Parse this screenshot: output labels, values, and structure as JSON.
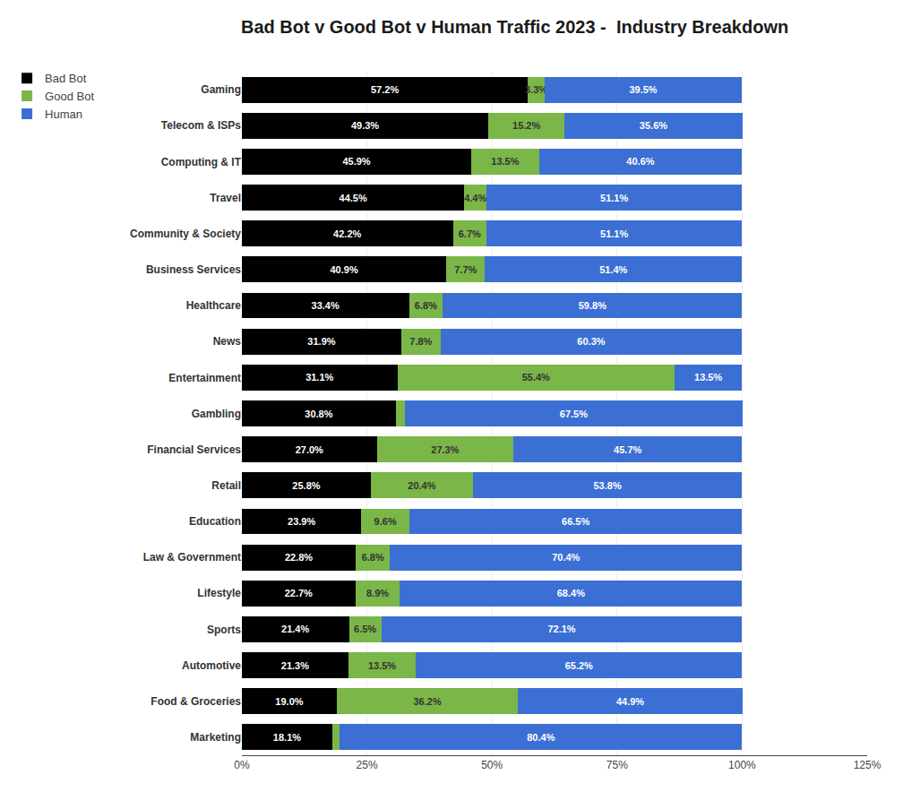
{
  "chart_data": {
    "type": "bar",
    "orientation": "horizontal",
    "stacked": true,
    "title": "Bad Bot v Good Bot v Human Traffic 2023 -  Industry Breakdown",
    "categories": [
      "Gaming",
      "Telecom & ISPs",
      "Computing & IT",
      "Travel",
      "Community & Society",
      "Business Services",
      "Healthcare",
      "News",
      "Entertainment",
      "Gambling",
      "Financial Services",
      "Retail",
      "Education",
      "Law & Government",
      "Lifestyle",
      "Sports",
      "Automotive",
      "Food & Groceries",
      "Marketing"
    ],
    "series": [
      {
        "name": "Bad Bot",
        "color": "#000000",
        "values": [
          57.2,
          49.3,
          45.9,
          44.5,
          42.2,
          40.9,
          33.4,
          31.9,
          31.1,
          30.8,
          27.0,
          25.8,
          23.9,
          22.8,
          22.7,
          21.4,
          21.3,
          19.0,
          18.1
        ],
        "value_labels": [
          "57.2%",
          "49.3%",
          "45.9%",
          "44.5%",
          "42.2%",
          "40.9%",
          "33.4%",
          "31.9%",
          "31.1%",
          "30.8%",
          "27.0%",
          "25.8%",
          "23.9%",
          "22.8%",
          "22.7%",
          "21.4%",
          "21.3%",
          "19.0%",
          "18.1%"
        ]
      },
      {
        "name": "Good Bot",
        "color": "#7ab648",
        "values": [
          3.3,
          15.2,
          13.5,
          4.4,
          6.7,
          7.7,
          6.8,
          7.8,
          55.4,
          1.8,
          27.3,
          20.4,
          9.6,
          6.8,
          8.9,
          6.5,
          13.5,
          36.2,
          1.5
        ],
        "value_labels": [
          "3.3%",
          "15.2%",
          "13.5%",
          "4.4%",
          "6.7%",
          "7.7%",
          "6.8%",
          "7.8%",
          "55.4%",
          null,
          "27.3%",
          "20.4%",
          "9.6%",
          "6.8%",
          "8.9%",
          "6.5%",
          "13.5%",
          "36.2%",
          null
        ]
      },
      {
        "name": "Human",
        "color": "#3b6fd4",
        "values": [
          39.5,
          35.6,
          40.6,
          51.1,
          51.1,
          51.4,
          59.8,
          60.3,
          13.5,
          67.5,
          45.7,
          53.8,
          66.5,
          70.4,
          68.4,
          72.1,
          65.2,
          44.9,
          80.4
        ],
        "value_labels": [
          "39.5%",
          "35.6%",
          "40.6%",
          "51.1%",
          "51.1%",
          "51.4%",
          "59.8%",
          "60.3%",
          "13.5%",
          "67.5%",
          "45.7%",
          "53.8%",
          "66.5%",
          "70.4%",
          "68.4%",
          "72.1%",
          "65.2%",
          "44.9%",
          "80.4%"
        ]
      }
    ],
    "xlim": [
      0,
      125
    ],
    "xticks": [
      {
        "value": 0,
        "label": "0%"
      },
      {
        "value": 25,
        "label": "25%"
      },
      {
        "value": 50,
        "label": "50%"
      },
      {
        "value": 75,
        "label": "75%"
      },
      {
        "value": 100,
        "label": "100%"
      },
      {
        "value": 125,
        "label": "125%"
      }
    ],
    "grid": true,
    "legend": "upper left",
    "data_labels": true
  }
}
